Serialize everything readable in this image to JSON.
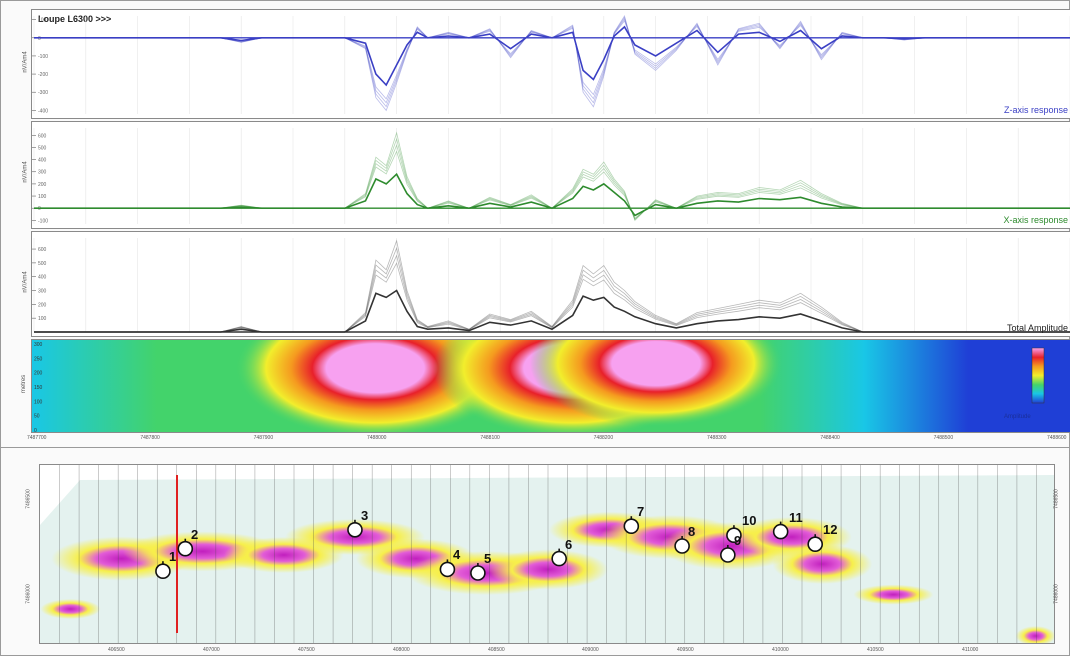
{
  "profile": {
    "title": "Loupe L6300 >>>"
  },
  "chart_data": [
    {
      "type": "line",
      "title": "",
      "series_label": "Z-axis response",
      "ylabel": "nV/Am4",
      "yticks": [
        100,
        0,
        -100,
        -200,
        -300,
        -400
      ],
      "ylim": [
        -420,
        120
      ],
      "color": "#3a3fc4",
      "profile_x": [
        0.0,
        0.1,
        0.18,
        0.2,
        0.22,
        0.3,
        0.32,
        0.33,
        0.34,
        0.35,
        0.36,
        0.37,
        0.38,
        0.4,
        0.42,
        0.44,
        0.46,
        0.48,
        0.5,
        0.52,
        0.53,
        0.54,
        0.55,
        0.56,
        0.57,
        0.58,
        0.6,
        0.62,
        0.64,
        0.66,
        0.68,
        0.7,
        0.72,
        0.74,
        0.76,
        0.78,
        0.8,
        0.82,
        0.84,
        0.86,
        1.0
      ],
      "series": [
        {
          "name": "main",
          "values": [
            0,
            0,
            0,
            -15,
            0,
            0,
            -30,
            -200,
            -260,
            -150,
            -40,
            30,
            0,
            10,
            0,
            20,
            -60,
            20,
            0,
            30,
            -180,
            -230,
            -120,
            10,
            60,
            -40,
            -100,
            -30,
            40,
            -80,
            20,
            30,
            -20,
            40,
            -60,
            10,
            0,
            0,
            -5,
            0,
            0
          ]
        },
        {
          "name": "envelope",
          "values": [
            0,
            0,
            0,
            -25,
            0,
            0,
            -60,
            -330,
            -400,
            -250,
            -80,
            60,
            0,
            30,
            0,
            50,
            -110,
            40,
            0,
            70,
            -300,
            -380,
            -210,
            30,
            120,
            -90,
            -180,
            -70,
            80,
            -150,
            50,
            80,
            -60,
            90,
            -120,
            30,
            0,
            0,
            -12,
            0,
            0
          ]
        }
      ]
    },
    {
      "type": "line",
      "title": "",
      "series_label": "X-axis response",
      "ylabel": "nV/Am4",
      "yticks": [
        600,
        500,
        400,
        300,
        200,
        100,
        0,
        -100
      ],
      "ylim": [
        -130,
        660
      ],
      "color": "#2e8b2e",
      "profile_x": [
        0.0,
        0.18,
        0.2,
        0.22,
        0.3,
        0.32,
        0.33,
        0.34,
        0.35,
        0.36,
        0.37,
        0.38,
        0.4,
        0.42,
        0.44,
        0.46,
        0.48,
        0.5,
        0.52,
        0.53,
        0.54,
        0.55,
        0.56,
        0.57,
        0.58,
        0.6,
        0.62,
        0.64,
        0.66,
        0.68,
        0.7,
        0.72,
        0.74,
        0.76,
        0.78,
        0.8,
        1.0
      ],
      "series": [
        {
          "name": "main",
          "values": [
            0,
            0,
            10,
            0,
            0,
            60,
            240,
            200,
            280,
            120,
            30,
            0,
            20,
            0,
            40,
            10,
            50,
            0,
            80,
            180,
            150,
            200,
            130,
            60,
            -60,
            30,
            0,
            40,
            60,
            50,
            80,
            70,
            90,
            40,
            10,
            0,
            0
          ]
        },
        {
          "name": "envelope",
          "values": [
            0,
            0,
            25,
            0,
            0,
            120,
            420,
            350,
            620,
            260,
            80,
            0,
            60,
            0,
            90,
            30,
            110,
            0,
            160,
            320,
            280,
            380,
            240,
            140,
            -100,
            70,
            0,
            100,
            130,
            120,
            170,
            150,
            230,
            120,
            40,
            0,
            0
          ]
        }
      ]
    },
    {
      "type": "line",
      "title": "",
      "series_label": "Total Amplitude",
      "ylabel": "nV/Am4",
      "yticks": [
        600,
        500,
        400,
        300,
        200,
        100
      ],
      "ylim": [
        0,
        680
      ],
      "color": "#333333",
      "profile_x": [
        0.0,
        0.18,
        0.2,
        0.22,
        0.3,
        0.32,
        0.33,
        0.34,
        0.35,
        0.36,
        0.37,
        0.38,
        0.4,
        0.42,
        0.44,
        0.46,
        0.48,
        0.5,
        0.52,
        0.53,
        0.54,
        0.55,
        0.56,
        0.57,
        0.58,
        0.6,
        0.62,
        0.64,
        0.66,
        0.68,
        0.7,
        0.72,
        0.74,
        0.76,
        0.78,
        0.8,
        1.0
      ],
      "series": [
        {
          "name": "main",
          "values": [
            0,
            0,
            20,
            0,
            0,
            80,
            280,
            250,
            300,
            150,
            40,
            20,
            30,
            10,
            70,
            50,
            80,
            20,
            120,
            260,
            230,
            250,
            180,
            150,
            110,
            60,
            30,
            60,
            80,
            90,
            110,
            100,
            130,
            80,
            30,
            0,
            0
          ]
        },
        {
          "name": "envelope",
          "values": [
            0,
            0,
            40,
            0,
            0,
            140,
            520,
            450,
            660,
            300,
            90,
            40,
            80,
            20,
            130,
            90,
            150,
            40,
            230,
            480,
            420,
            480,
            360,
            300,
            220,
            120,
            60,
            140,
            170,
            200,
            230,
            210,
            280,
            180,
            70,
            0,
            0
          ]
        }
      ]
    },
    {
      "type": "heatmap",
      "title": "",
      "ylabel": "metres",
      "yticks": [
        300,
        250,
        200,
        150,
        100,
        50,
        0
      ],
      "xticks": [
        "7487700",
        "7487800",
        "7487900",
        "7488000",
        "7488100",
        "7488200",
        "7488300",
        "7488400",
        "7488500",
        "7488600"
      ],
      "colorscale": [
        "#1f3fd6",
        "#19c7e6",
        "#43d36b",
        "#f2ee2c",
        "#f59a1f",
        "#e8202a",
        "#f7a1f0"
      ],
      "colorbar_label": "Amplitude",
      "bodies": [
        {
          "x": 0.33,
          "depth": 0.3,
          "strength": 1.0
        },
        {
          "x": 0.52,
          "depth": 0.3,
          "strength": 1.0
        },
        {
          "x": 0.6,
          "depth": 0.25,
          "strength": 0.9
        }
      ]
    },
    {
      "type": "heatmap",
      "title": "",
      "xticks": [
        "406500",
        "407000",
        "407500",
        "408000",
        "408500",
        "409000",
        "409500",
        "410000",
        "410500",
        "411000"
      ],
      "yticks_left": [
        "7486500",
        "7486000"
      ],
      "yticks_right": [
        "7486500",
        "7486000"
      ],
      "colorscale": [
        "#e4f2ef",
        "#f7ef4a",
        "#e25cd7",
        "#c11fbe"
      ],
      "points": [
        {
          "label": "1",
          "x": 0.121,
          "y": 0.59
        },
        {
          "label": "2",
          "x": 0.143,
          "y": 0.465
        },
        {
          "label": "3",
          "x": 0.31,
          "y": 0.36
        },
        {
          "label": "4",
          "x": 0.401,
          "y": 0.58
        },
        {
          "label": "5",
          "x": 0.431,
          "y": 0.6
        },
        {
          "label": "6",
          "x": 0.511,
          "y": 0.52
        },
        {
          "label": "7",
          "x": 0.582,
          "y": 0.34
        },
        {
          "label": "8",
          "x": 0.632,
          "y": 0.45
        },
        {
          "label": "9",
          "x": 0.677,
          "y": 0.5
        },
        {
          "label": "10",
          "x": 0.683,
          "y": 0.39
        },
        {
          "label": "11",
          "x": 0.729,
          "y": 0.37
        },
        {
          "label": "12",
          "x": 0.763,
          "y": 0.44
        }
      ]
    }
  ]
}
